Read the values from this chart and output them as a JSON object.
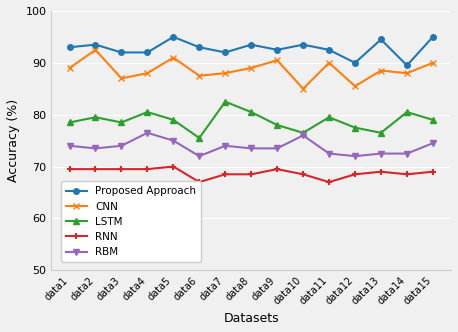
{
  "datasets": [
    "data1",
    "data2",
    "data3",
    "data4",
    "data5",
    "data6",
    "data7",
    "data8",
    "data9",
    "data10",
    "data11",
    "data12",
    "data13",
    "data14",
    "data15"
  ],
  "proposed": [
    93,
    93.5,
    92,
    92,
    95,
    93,
    92,
    93.5,
    92.5,
    93.5,
    92.5,
    90,
    94.5,
    89.5,
    95
  ],
  "cnn": [
    89,
    92.5,
    87,
    88,
    91,
    87.5,
    88,
    89,
    90.5,
    85,
    90,
    85.5,
    88.5,
    88,
    90
  ],
  "lstm": [
    78.5,
    79.5,
    78.5,
    80.5,
    79,
    75.5,
    82.5,
    80.5,
    78,
    76.5,
    79.5,
    77.5,
    76.5,
    80.5,
    79
  ],
  "rnn": [
    69.5,
    69.5,
    69.5,
    69.5,
    70,
    67,
    68.5,
    68.5,
    69.5,
    68.5,
    67,
    68.5,
    69,
    68.5,
    69
  ],
  "rbm": [
    74,
    73.5,
    74,
    76.5,
    75,
    72,
    74,
    73.5,
    73.5,
    76,
    72.5,
    72,
    72.5,
    72.5,
    74.5
  ],
  "colors": {
    "proposed": "#1f77b4",
    "cnn": "#ff7f0e",
    "lstm": "#2ca02c",
    "rnn": "#d62728",
    "rbm": "#9467bd"
  },
  "ylabel": "Accuracy (%)",
  "xlabel": "Datasets",
  "ylim": [
    50,
    100
  ],
  "yticks": [
    50,
    60,
    70,
    80,
    90,
    100
  ]
}
